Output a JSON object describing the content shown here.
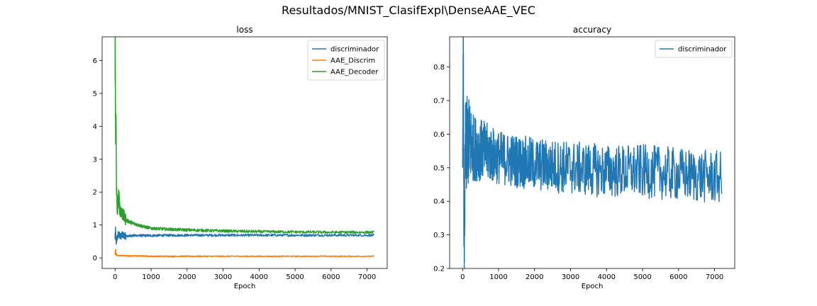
{
  "suptitle": "Resultados/MNIST_ClasifExpl\\DenseAAE_VEC",
  "chart_data": [
    {
      "type": "line",
      "title": "loss",
      "xlabel": "Epoch",
      "ylabel": "",
      "xlim": [
        -360,
        7560
      ],
      "ylim": [
        -0.32,
        6.72
      ],
      "xticks": [
        0,
        1000,
        2000,
        3000,
        4000,
        5000,
        6000,
        7000
      ],
      "yticks": [
        0,
        1,
        2,
        3,
        4,
        5,
        6
      ],
      "legend_position": "top-right",
      "series": [
        {
          "name": "discriminador",
          "color": "#1f77b4",
          "x": [
            0,
            15,
            30,
            60,
            100,
            150,
            200,
            300,
            500,
            1000,
            2000,
            3000,
            4000,
            5000,
            6000,
            7200
          ],
          "y": [
            0.6,
            0.85,
            0.45,
            0.62,
            0.75,
            0.65,
            0.7,
            0.66,
            0.68,
            0.68,
            0.69,
            0.69,
            0.69,
            0.69,
            0.69,
            0.69
          ]
        },
        {
          "name": "AAE_Discrim",
          "color": "#ff7f0e",
          "x": [
            0,
            10,
            30,
            60,
            100,
            200,
            400,
            700,
            1000,
            2000,
            3000,
            4000,
            5000,
            6000,
            7200
          ],
          "y": [
            0.1,
            0.25,
            0.1,
            0.08,
            0.07,
            0.07,
            0.06,
            0.06,
            0.05,
            0.05,
            0.05,
            0.05,
            0.05,
            0.05,
            0.05
          ]
        },
        {
          "name": "AAE_Decoder",
          "color": "#2ca02c",
          "x": [
            0,
            5,
            15,
            25,
            40,
            60,
            100,
            130,
            200,
            300,
            500,
            800,
            1000,
            1500,
            2000,
            3000,
            4000,
            5000,
            6000,
            7200
          ],
          "y": [
            6.4,
            5.5,
            3.5,
            4.2,
            2.0,
            1.4,
            1.9,
            1.5,
            1.35,
            1.15,
            1.05,
            0.95,
            0.9,
            0.87,
            0.85,
            0.82,
            0.8,
            0.79,
            0.78,
            0.78
          ]
        }
      ]
    },
    {
      "type": "line",
      "title": "accuracy",
      "xlabel": "Epoch",
      "ylabel": "",
      "xlim": [
        -360,
        7560
      ],
      "ylim": [
        0.2,
        0.89
      ],
      "xticks": [
        0,
        1000,
        2000,
        3000,
        4000,
        5000,
        6000,
        7000
      ],
      "yticks": [
        0.2,
        0.3,
        0.4,
        0.5,
        0.6,
        0.7,
        0.8
      ],
      "legend_position": "top-right",
      "series": [
        {
          "name": "discriminador",
          "color": "#1f77b4",
          "x": [
            0,
            20,
            40,
            80,
            150,
            300,
            600,
            1000,
            2000,
            3000,
            4000,
            5000,
            6000,
            7200
          ],
          "y": [
            0.5,
            0.86,
            0.23,
            0.55,
            0.58,
            0.56,
            0.55,
            0.53,
            0.51,
            0.5,
            0.49,
            0.49,
            0.48,
            0.47
          ],
          "spread": [
            0.0,
            0.12,
            0.1,
            0.15,
            0.14,
            0.1,
            0.09,
            0.08,
            0.08,
            0.08,
            0.08,
            0.08,
            0.08,
            0.08
          ]
        }
      ]
    }
  ]
}
